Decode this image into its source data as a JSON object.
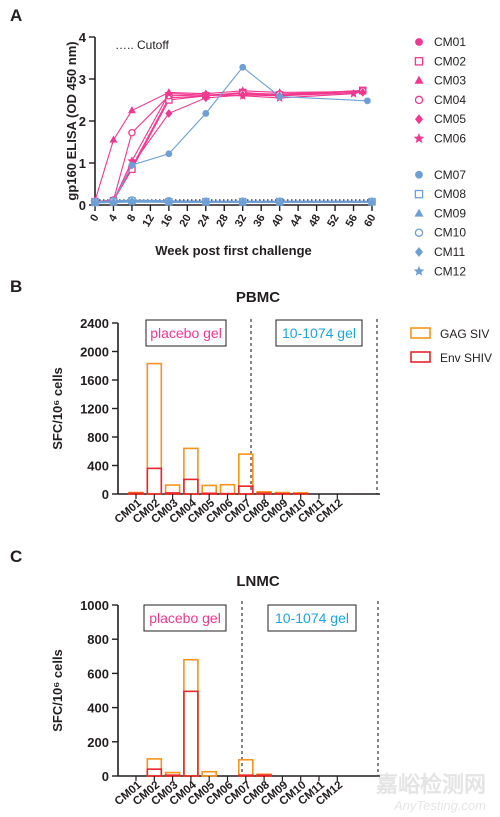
{
  "panel_labels": [
    "A",
    "B",
    "C"
  ],
  "colors": {
    "pink": "#f0388f",
    "blue": "#6f9fd4",
    "orange": "#f7941d",
    "red": "#e8262c",
    "black": "#231f20"
  },
  "chart_data": [
    {
      "type": "line",
      "panel": "A",
      "ylabel": "gp160 ELISA (OD 450 nm)",
      "xlabel": "Week post first challenge",
      "xlim": [
        0,
        60
      ],
      "ylim": [
        0,
        4
      ],
      "x_ticks": [
        0,
        4,
        8,
        12,
        16,
        20,
        24,
        28,
        32,
        36,
        40,
        44,
        48,
        52,
        56,
        60
      ],
      "y_ticks": [
        0,
        1,
        2,
        3,
        4
      ],
      "cutoff": {
        "label": "….. Cutoff",
        "value": 0.12
      },
      "series": [
        {
          "name": "CM01",
          "group": "pink",
          "marker": "circle",
          "x": [
            0,
            4,
            8,
            16,
            24,
            32,
            40,
            58
          ],
          "y": [
            0.08,
            0.1,
            0.9,
            2.55,
            2.6,
            2.65,
            2.6,
            2.72
          ]
        },
        {
          "name": "CM02",
          "group": "pink",
          "marker": "square-open",
          "x": [
            0,
            4,
            8,
            16,
            24,
            32,
            40,
            58
          ],
          "y": [
            0.08,
            0.1,
            0.85,
            2.5,
            2.6,
            2.68,
            2.62,
            2.73
          ]
        },
        {
          "name": "CM03",
          "group": "pink",
          "marker": "triangle",
          "x": [
            0,
            4,
            8,
            16,
            24,
            32,
            40,
            58
          ],
          "y": [
            0.1,
            1.55,
            2.25,
            2.68,
            2.65,
            2.72,
            2.68,
            2.7
          ]
        },
        {
          "name": "CM04",
          "group": "pink",
          "marker": "circle-open",
          "x": [
            0,
            4,
            8,
            16,
            24,
            32,
            40,
            58
          ],
          "y": [
            0.08,
            0.12,
            1.72,
            2.6,
            2.62,
            2.66,
            2.64,
            2.72
          ]
        },
        {
          "name": "CM05",
          "group": "pink",
          "marker": "diamond",
          "x": [
            0,
            4,
            8,
            16,
            24,
            32,
            40,
            58
          ],
          "y": [
            0.08,
            0.1,
            0.95,
            2.18,
            2.55,
            2.62,
            2.6,
            2.68
          ]
        },
        {
          "name": "CM06",
          "group": "pink",
          "marker": "star",
          "x": [
            0,
            4,
            8,
            16,
            24,
            32,
            40,
            56
          ],
          "y": [
            0.08,
            0.1,
            1.05,
            2.65,
            2.62,
            2.6,
            2.55,
            2.65
          ]
        },
        {
          "name": "CM07",
          "group": "blue",
          "marker": "circle",
          "x": [
            0,
            4,
            8,
            16,
            24,
            32,
            40,
            59
          ],
          "y": [
            0.05,
            0.08,
            0.95,
            1.22,
            2.18,
            3.28,
            2.58,
            2.48
          ]
        },
        {
          "name": "CM08",
          "group": "blue",
          "marker": "square-open",
          "x": [
            0,
            4,
            8,
            16,
            24,
            32,
            40,
            60
          ],
          "y": [
            0.07,
            0.08,
            0.1,
            0.08,
            0.08,
            0.08,
            0.08,
            0.08
          ]
        },
        {
          "name": "CM09",
          "group": "blue",
          "marker": "triangle",
          "x": [
            0,
            4,
            8,
            16,
            24,
            32,
            40,
            60
          ],
          "y": [
            0.06,
            0.07,
            0.08,
            0.07,
            0.07,
            0.07,
            0.07,
            0.07
          ]
        },
        {
          "name": "CM10",
          "group": "blue",
          "marker": "circle-open",
          "x": [
            0,
            4,
            8,
            16,
            24,
            32,
            40,
            60
          ],
          "y": [
            0.08,
            0.1,
            0.12,
            0.1,
            0.09,
            0.09,
            0.09,
            0.09
          ]
        },
        {
          "name": "CM11",
          "group": "blue",
          "marker": "diamond",
          "x": [
            0,
            4,
            8,
            16,
            24,
            32,
            40,
            60
          ],
          "y": [
            0.06,
            0.07,
            0.09,
            0.08,
            0.07,
            0.07,
            0.07,
            0.07
          ]
        },
        {
          "name": "CM12",
          "group": "blue",
          "marker": "star",
          "x": [
            0,
            4,
            8,
            16,
            24,
            32,
            40,
            60
          ],
          "y": [
            0.05,
            0.06,
            0.07,
            0.06,
            0.06,
            0.06,
            0.06,
            0.06
          ]
        }
      ]
    },
    {
      "type": "bar",
      "panel": "B",
      "title": "PBMC",
      "ylabel": "SFC/10⁶ cells",
      "ylim": [
        0,
        2400
      ],
      "y_ticks": [
        0,
        400,
        800,
        1200,
        1600,
        2000,
        2400
      ],
      "categories": [
        "CM01",
        "CM02",
        "CM03",
        "CM04",
        "CM05",
        "CM06",
        "CM07",
        "CM08",
        "CM09",
        "CM10",
        "CM11",
        "CM12"
      ],
      "group_labels": [
        "placebo gel",
        "10-1074 gel"
      ],
      "legend": [
        "GAG SIV",
        "Env SHIV"
      ],
      "series": [
        {
          "name": "GAG SIV",
          "values": [
            20,
            1830,
            125,
            640,
            120,
            130,
            560,
            30,
            20,
            15,
            0,
            0
          ]
        },
        {
          "name": "Env SHIV",
          "values": [
            10,
            360,
            15,
            205,
            10,
            5,
            110,
            10,
            5,
            5,
            0,
            0
          ]
        }
      ]
    },
    {
      "type": "bar",
      "panel": "C",
      "title": "LNMC",
      "ylabel": "SFC/10⁶ cells",
      "ylim": [
        0,
        1000
      ],
      "y_ticks": [
        0,
        200,
        400,
        600,
        800,
        1000
      ],
      "categories": [
        "CM01",
        "CM02",
        "CM03",
        "CM04",
        "CM05",
        "CM06",
        "CM07",
        "CM08",
        "CM09",
        "CM10",
        "CM11",
        "CM12"
      ],
      "group_labels": [
        "placebo gel",
        "10-1074 gel"
      ],
      "series": [
        {
          "name": "GAG SIV",
          "values": [
            0,
            100,
            20,
            680,
            25,
            0,
            95,
            10,
            0,
            0,
            0,
            0
          ]
        },
        {
          "name": "Env SHIV",
          "values": [
            0,
            40,
            5,
            495,
            0,
            0,
            5,
            5,
            0,
            0,
            0,
            0
          ]
        }
      ]
    }
  ],
  "watermark": {
    "cn": "嘉峪检测网",
    "en": "AnyTesting.com"
  }
}
